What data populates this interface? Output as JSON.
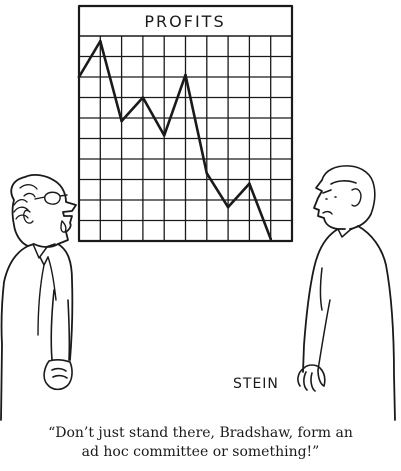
{
  "chart": {
    "title": "PROFITS"
  },
  "signature": "STEIN",
  "caption": {
    "line1": "“Don’t just stand there, Bradshaw, form an",
    "line2": "ad hoc committee or something!”"
  },
  "chart_data": {
    "type": "line",
    "title": "PROFITS",
    "xlabel": "",
    "ylabel": "",
    "grid": true,
    "legend": "none",
    "x": [
      0,
      1,
      2,
      3,
      4,
      5,
      6,
      7,
      8,
      9
    ],
    "values": [
      8.0,
      9.75,
      5.85,
      7.0,
      5.15,
      8.1,
      3.3,
      1.65,
      2.8,
      0.1
    ],
    "xlim": [
      0,
      10
    ],
    "ylim": [
      0,
      10
    ]
  }
}
